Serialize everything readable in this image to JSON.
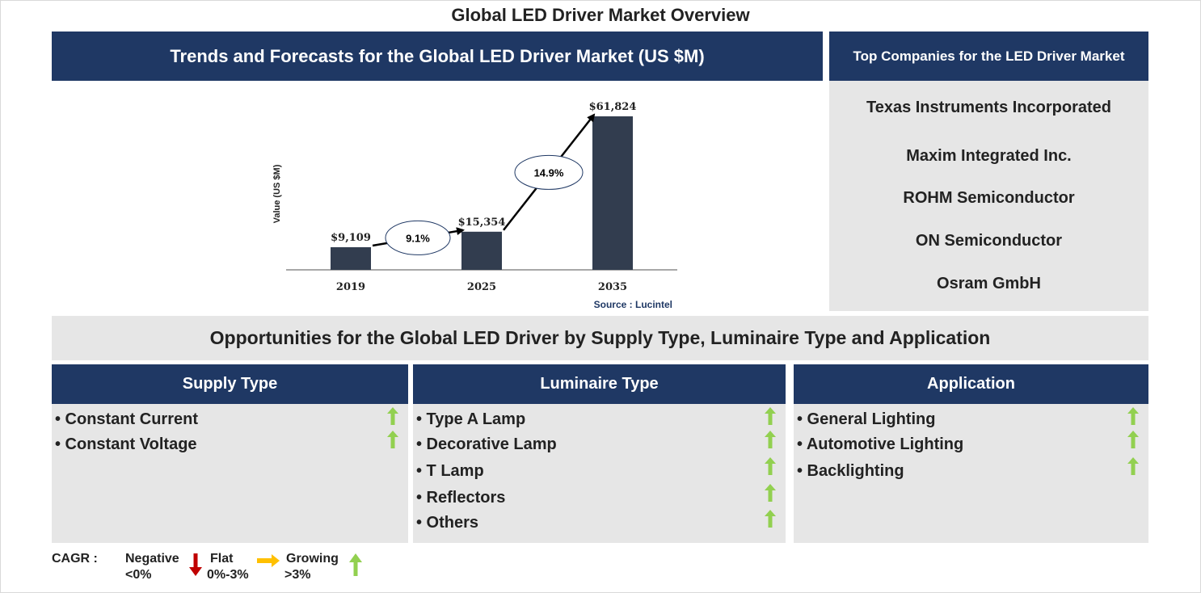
{
  "title": "Global LED Driver Market Overview",
  "chart_header": "Trends and Forecasts for the Global LED Driver Market (US $M)",
  "chart_data": {
    "type": "bar",
    "categories": [
      "2019",
      "2025",
      "2035"
    ],
    "values": [
      9109,
      15354,
      61824
    ],
    "value_labels": [
      "$9,109",
      "$15,354",
      "$61,824"
    ],
    "ylabel": "Value (US $M)",
    "cagr_labels": [
      "9.1%",
      "14.9%"
    ],
    "source": "Source : Lucintel",
    "bar_color": "#323d4f"
  },
  "companies": {
    "header": "Top Companies for the LED Driver Market",
    "items": [
      "Texas Instruments Incorporated",
      "Maxim Integrated Inc.",
      "ROHM Semiconductor",
      "ON Semiconductor",
      "Osram GmbH"
    ]
  },
  "opportunities_title": "Opportunities for the Global LED Driver by Supply Type, Luminaire Type and Application",
  "segments": [
    {
      "header": "Supply Type",
      "items": [
        "• Constant Current",
        "• Constant Voltage"
      ]
    },
    {
      "header": "Luminaire Type",
      "items": [
        "• Type A Lamp",
        "• Decorative Lamp",
        "• T Lamp",
        "• Reflectors",
        "• Others"
      ]
    },
    {
      "header": "Application",
      "items": [
        "• General Lighting",
        "• Automotive Lighting",
        "• Backlighting"
      ]
    }
  ],
  "legend": {
    "cagr": "CAGR  :",
    "negative": "Negative",
    "negative_range": "<0%",
    "flat": "Flat",
    "flat_range": "0%-3%",
    "growing": "Growing",
    "growing_range": ">3%"
  },
  "colors": {
    "navy": "#1f3864",
    "panel_grey": "#e6e6e6",
    "growing": "#92d050",
    "negative": "#c00000",
    "flat": "#ffc000"
  }
}
